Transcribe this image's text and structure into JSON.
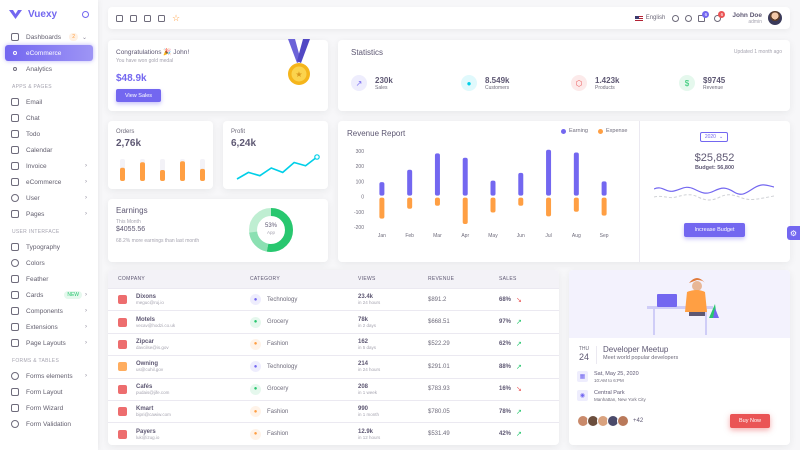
{
  "brand": {
    "name": "Vuexy"
  },
  "sidebar": {
    "dashboards": {
      "label": "Dashboards",
      "badge": "2"
    },
    "subs": [
      {
        "label": "eCommerce"
      },
      {
        "label": "Analytics"
      }
    ],
    "section_apps": "APPS & PAGES",
    "apps": [
      {
        "label": "Email"
      },
      {
        "label": "Chat"
      },
      {
        "label": "Todo"
      },
      {
        "label": "Calendar"
      },
      {
        "label": "Invoice"
      },
      {
        "label": "eCommerce"
      },
      {
        "label": "User"
      },
      {
        "label": "Pages"
      }
    ],
    "section_ui": "USER INTERFACE",
    "ui": [
      {
        "label": "Typography"
      },
      {
        "label": "Colors"
      },
      {
        "label": "Feather"
      },
      {
        "label": "Cards",
        "badge": "NEW"
      },
      {
        "label": "Components"
      },
      {
        "label": "Extensions"
      },
      {
        "label": "Page Layouts"
      }
    ],
    "section_forms": "FORMS & TABLES",
    "forms": [
      {
        "label": "Forms elements"
      },
      {
        "label": "Form Layout"
      },
      {
        "label": "Form Wizard"
      },
      {
        "label": "Form Validation"
      }
    ]
  },
  "navbar": {
    "language": "English",
    "cart_count": "6",
    "notif_count": "6",
    "user_name": "John Doe",
    "user_role": "admin"
  },
  "congrats": {
    "title": "Congratulations 🎉 John!",
    "subtitle": "You have won gold medal",
    "amount": "$48.9k",
    "button": "View Sales"
  },
  "statistics": {
    "title": "Statistics",
    "updated": "Updated 1 month ago",
    "items": [
      {
        "value": "230k",
        "label": "Sales",
        "icon": "trending-up-icon",
        "color": "#7367f0",
        "bg": "#eeedfd"
      },
      {
        "value": "8.549k",
        "label": "Customers",
        "icon": "user-icon",
        "color": "#00cfe8",
        "bg": "#e0f9fc"
      },
      {
        "value": "1.423k",
        "label": "Products",
        "icon": "box-icon",
        "color": "#ea5455",
        "bg": "#fceaea"
      },
      {
        "value": "$9745",
        "label": "Revenue",
        "icon": "dollar-icon",
        "color": "#28c76f",
        "bg": "#e5f8ed"
      }
    ]
  },
  "orders": {
    "title": "Orders",
    "value": "2,76k",
    "bars": [
      0.6,
      0.85,
      0.5,
      0.9,
      0.55
    ]
  },
  "profit": {
    "title": "Profit",
    "value": "6,24k",
    "points": [
      0,
      3,
      1.5,
      5,
      3,
      7.5,
      6,
      10
    ]
  },
  "earnings": {
    "title": "Earnings",
    "period": "This Month",
    "amount": "$4055.56",
    "note": "68.2% more earnings than last month",
    "percent_label": "53%",
    "percent_sub": "App",
    "percent": 53
  },
  "revenue_report": {
    "title": "Revenue Report",
    "legend": [
      {
        "name": "Earning",
        "color": "#7367f0"
      },
      {
        "name": "Expense",
        "color": "#ff9f43"
      }
    ],
    "year": "2020",
    "total": "$25,852",
    "budget": "Budget: 56,800",
    "button": "Increase Budget"
  },
  "chart_data": {
    "type": "bar",
    "categories": [
      "Jan",
      "Feb",
      "Mar",
      "Apr",
      "May",
      "Jun",
      "Jul",
      "Aug",
      "Sep"
    ],
    "series": [
      {
        "name": "Earning",
        "values": [
          95,
          177,
          284,
          256,
          105,
          156,
          308,
          290,
          100
        ]
      },
      {
        "name": "Expense",
        "values": [
          -145,
          -80,
          -60,
          -180,
          -105,
          -60,
          -130,
          -100,
          -125
        ]
      }
    ],
    "yticks": [
      "300",
      "200",
      "100",
      "0",
      "-100",
      "-200"
    ],
    "ylim": [
      -200,
      300
    ]
  },
  "table": {
    "headers": [
      "COMPANY",
      "CATEGORY",
      "VIEWS",
      "REVENUE",
      "SALES"
    ],
    "rows": [
      {
        "name": "Dixons",
        "email": "meguc@ruj.io",
        "icon_color": "#ea5455",
        "category": "Technology",
        "cat_color": "#7367f0",
        "cat_bg": "#eeedfd",
        "views": "23.4k",
        "views_sub": "in 24 hours",
        "revenue": "$891.2",
        "sales": "68%",
        "trend_up": false
      },
      {
        "name": "Motels",
        "email": "vecav@hodzi.co.uk",
        "icon_color": "#ea5455",
        "category": "Grocery",
        "cat_color": "#28c76f",
        "cat_bg": "#e5f8ed",
        "views": "78k",
        "views_sub": "in 2 days",
        "revenue": "$668.51",
        "sales": "97%",
        "trend_up": true
      },
      {
        "name": "Zipcar",
        "email": "davcilse@is.gov",
        "icon_color": "#ea5455",
        "category": "Fashion",
        "cat_color": "#ff9f43",
        "cat_bg": "#fff3e8",
        "views": "162",
        "views_sub": "in 5 days",
        "revenue": "$522.29",
        "sales": "62%",
        "trend_up": true
      },
      {
        "name": "Owning",
        "email": "us@cuhil.gov",
        "icon_color": "#ff9f43",
        "category": "Technology",
        "cat_color": "#7367f0",
        "cat_bg": "#eeedfd",
        "views": "214",
        "views_sub": "in 24 hours",
        "revenue": "$291.01",
        "sales": "88%",
        "trend_up": true
      },
      {
        "name": "Cafés",
        "email": "pudais@jife.com",
        "icon_color": "#ea5455",
        "category": "Grocery",
        "cat_color": "#28c76f",
        "cat_bg": "#e5f8ed",
        "views": "208",
        "views_sub": "in 1 week",
        "revenue": "$783.93",
        "sales": "16%",
        "trend_up": false
      },
      {
        "name": "Kmart",
        "email": "bipri@cawiw.com",
        "icon_color": "#ea5455",
        "category": "Fashion",
        "cat_color": "#ff9f43",
        "cat_bg": "#fff3e8",
        "views": "990",
        "views_sub": "in 1 month",
        "revenue": "$780.05",
        "sales": "78%",
        "trend_up": true
      },
      {
        "name": "Payers",
        "email": "luk@izug.io",
        "icon_color": "#ea5455",
        "category": "Fashion",
        "cat_color": "#ff9f43",
        "cat_bg": "#fff3e8",
        "views": "12.9k",
        "views_sub": "in 12 hours",
        "revenue": "$531.49",
        "sales": "42%",
        "trend_up": true
      }
    ]
  },
  "meetup": {
    "day": "THU",
    "date": "24",
    "title": "Developer Meetup",
    "subtitle": "Meet world popular developers",
    "when": "Sat, May 25, 2020",
    "time": "10:AM to 6:PM",
    "place": "Central Park",
    "address": "Manhattan, New York City",
    "more": "+42",
    "button": "Buy Now"
  }
}
